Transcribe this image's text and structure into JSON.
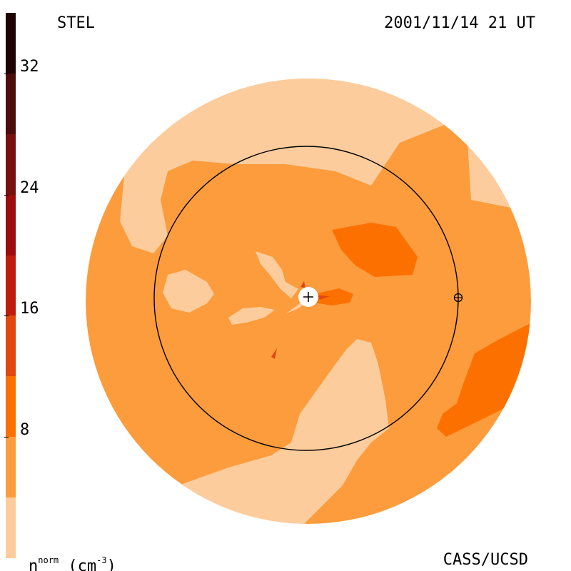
{
  "header": {
    "instrument": "STEL",
    "timestamp": "2001/11/14 21 UT"
  },
  "footer": {
    "credit": "CASS/UCSD",
    "unit_base": "n",
    "unit_sup": "norm",
    "unit_paren": "(cm",
    "unit_exp": "-3",
    "unit_close": ")"
  },
  "colorbar": {
    "ticks": [
      {
        "label": "32",
        "value": 32
      },
      {
        "label": "24",
        "value": 24
      },
      {
        "label": "16",
        "value": 16
      },
      {
        "label": "8",
        "value": 8
      }
    ],
    "levels": [
      {
        "from": 0,
        "to": 4,
        "color": "#fccc9c"
      },
      {
        "from": 4,
        "to": 8,
        "color": "#fc9c3c"
      },
      {
        "from": 8,
        "to": 12,
        "color": "#fc7000"
      },
      {
        "from": 12,
        "to": 16,
        "color": "#e04810"
      },
      {
        "from": 16,
        "to": 20,
        "color": "#c01c0c"
      },
      {
        "from": 20,
        "to": 24,
        "color": "#9c0c0c"
      },
      {
        "from": 24,
        "to": 28,
        "color": "#781010"
      },
      {
        "from": 28,
        "to": 32,
        "color": "#4c0c0c"
      },
      {
        "from": 32,
        "to": 36,
        "color": "#200404"
      }
    ]
  },
  "colors": {
    "light": "#fccc9c",
    "medium": "#fc9c3c",
    "dark": "#fc7000",
    "hot": "#e04810"
  },
  "markers": {
    "sun": "sun-plus-marker",
    "earth": "earth-circle-cross-marker",
    "orbit": "earth-orbit-circle"
  }
}
